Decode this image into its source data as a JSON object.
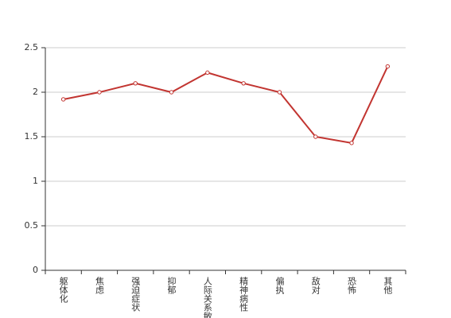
{
  "chart_data": {
    "type": "line",
    "categories": [
      "躯体化",
      "焦虑",
      "强迫症状",
      "抑郁",
      "人际关系敏感",
      "精神病性",
      "偏执",
      "敌对",
      "恐怖",
      "其他"
    ],
    "values": [
      1.92,
      2.0,
      2.1,
      2.0,
      2.22,
      2.1,
      2.0,
      1.5,
      1.43,
      2.29
    ],
    "color": "#c23531",
    "ylim": [
      0,
      2.5
    ],
    "yticks": [
      0,
      0.5,
      1,
      1.5,
      2,
      2.5
    ],
    "grid": true
  }
}
